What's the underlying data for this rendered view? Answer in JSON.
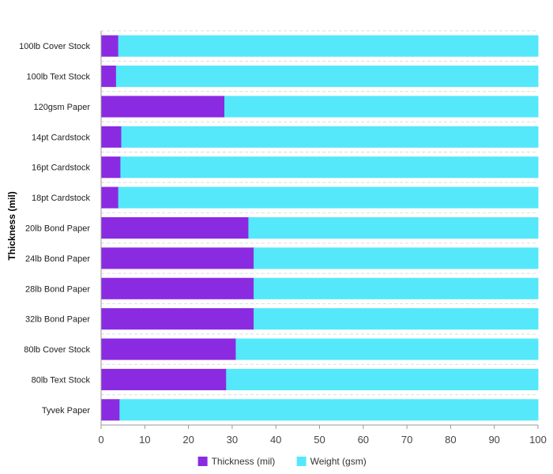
{
  "chart_data": {
    "type": "bar",
    "orientation": "horizontal",
    "stacked": true,
    "percent_stacked": true,
    "categories": [
      "100lb Cover Stock",
      "100lb Text Stock",
      "120gsm Paper",
      "14pt Cardstock",
      "16pt Cardstock",
      "18pt Cardstock",
      "20lb Bond Paper",
      "24lb Bond Paper",
      "28lb Bond Paper",
      "32lb Bond Paper",
      "80lb Cover Stock",
      "80lb Text Stock",
      "Tyvek Paper"
    ],
    "series": [
      {
        "name": "Thickness (mil)",
        "color": "#8a2be2",
        "values": [
          4,
          3.5,
          28.3,
          4.7,
          4.5,
          4,
          33.8,
          35,
          35,
          35,
          30.9,
          28.7,
          4.3
        ]
      },
      {
        "name": "Weight (gsm)",
        "color": "#55e8fa",
        "values": [
          96,
          96.5,
          71.7,
          95.3,
          95.5,
          96,
          66.2,
          65,
          65,
          65,
          69.1,
          71.3,
          95.7
        ]
      }
    ],
    "ylabel": "Thickness (mil)",
    "xlim": [
      0,
      100
    ],
    "x_ticks": [
      "0",
      "10",
      "20",
      "30",
      "40",
      "50",
      "60",
      "70",
      "80",
      "90",
      "100"
    ],
    "grid": true,
    "legend_position": "bottom"
  }
}
